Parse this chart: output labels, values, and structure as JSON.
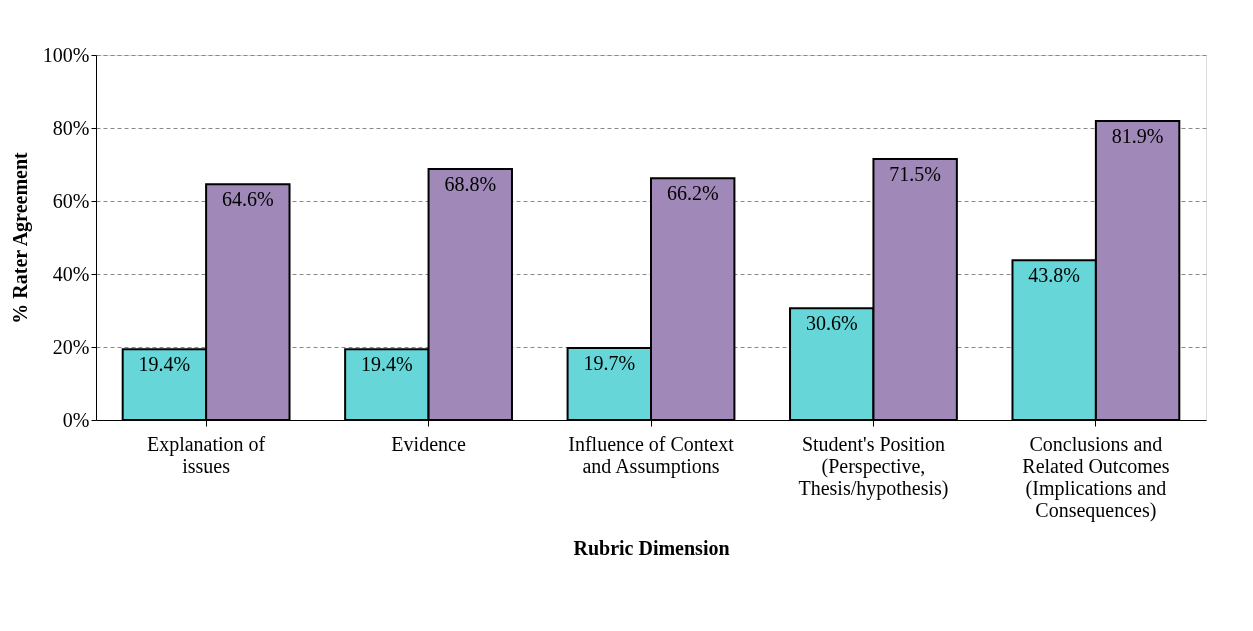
{
  "chart_data": {
    "type": "bar",
    "xlabel": "Rubric Dimension",
    "ylabel": "% Rater Agreement",
    "categories": [
      "Explanation of\nissues",
      "Evidence",
      "Influence of Context\nand Assumptions",
      "Student's Position\n(Perspective,\nThesis/hypothesis)",
      "Conclusions and\nRelated Outcomes\n(Implications and\nConsequences)"
    ],
    "series": [
      {
        "color": "#66d6d8",
        "values": [
          19.4,
          19.4,
          19.7,
          30.6,
          43.8
        ],
        "value_labels": [
          "19.4%",
          "19.4%",
          "19.7%",
          "30.6%",
          "43.8%"
        ]
      },
      {
        "color": "#a088b8",
        "values": [
          64.6,
          68.8,
          66.2,
          71.5,
          81.9
        ],
        "value_labels": [
          "64.6%",
          "68.8%",
          "66.2%",
          "71.5%",
          "81.9%"
        ]
      }
    ],
    "ylim": [
      0,
      100
    ],
    "yticks": [
      {
        "value": 0,
        "label": "0%"
      },
      {
        "value": 20,
        "label": "20%"
      },
      {
        "value": 40,
        "label": "40%"
      },
      {
        "value": 60,
        "label": "60%"
      },
      {
        "value": 80,
        "label": "80%"
      },
      {
        "value": 100,
        "label": "100%"
      }
    ],
    "grid": "y",
    "legend": false
  }
}
